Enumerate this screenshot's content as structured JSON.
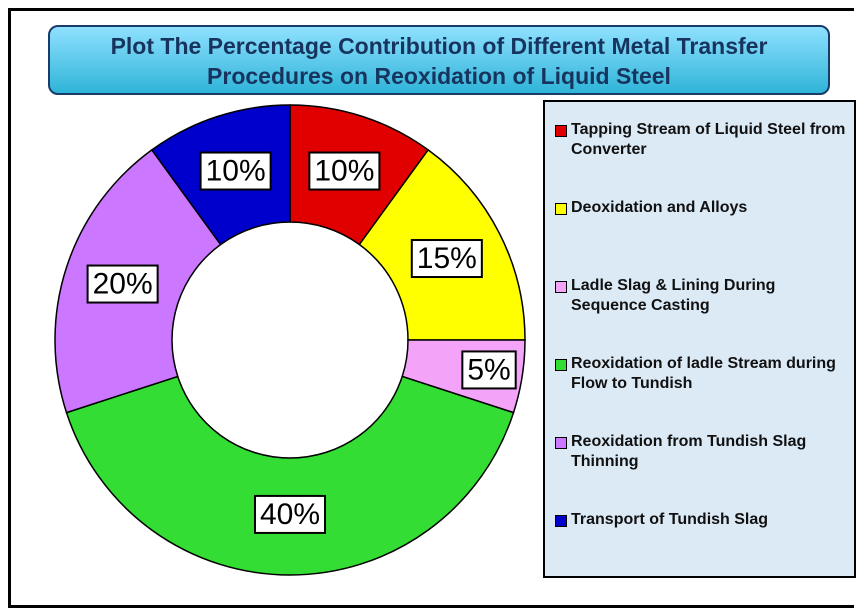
{
  "chart_data": {
    "type": "donut",
    "title": "Plot The Percentage Contribution of Different Metal Transfer Procedures on Reoxidation of Liquid Steel",
    "categories": [
      "Tapping Stream of Liquid Steel from Converter",
      "Deoxidation and Alloys",
      "Ladle Slag & Lining During Sequence Casting",
      "Reoxidation of ladle Stream during Flow to Tundish",
      "Reoxidation from Tundish Slag Thinning",
      "Transport of Tundish Slag"
    ],
    "values": [
      10,
      15,
      5,
      40,
      20,
      10
    ],
    "value_labels": [
      "10%",
      "15%",
      "5%",
      "40%",
      "20%",
      "10%"
    ],
    "colors": [
      "#e00000",
      "#ffff00",
      "#f4a4f8",
      "#33dd33",
      "#cc77ff",
      "#0000cc"
    ],
    "legend": "right"
  }
}
